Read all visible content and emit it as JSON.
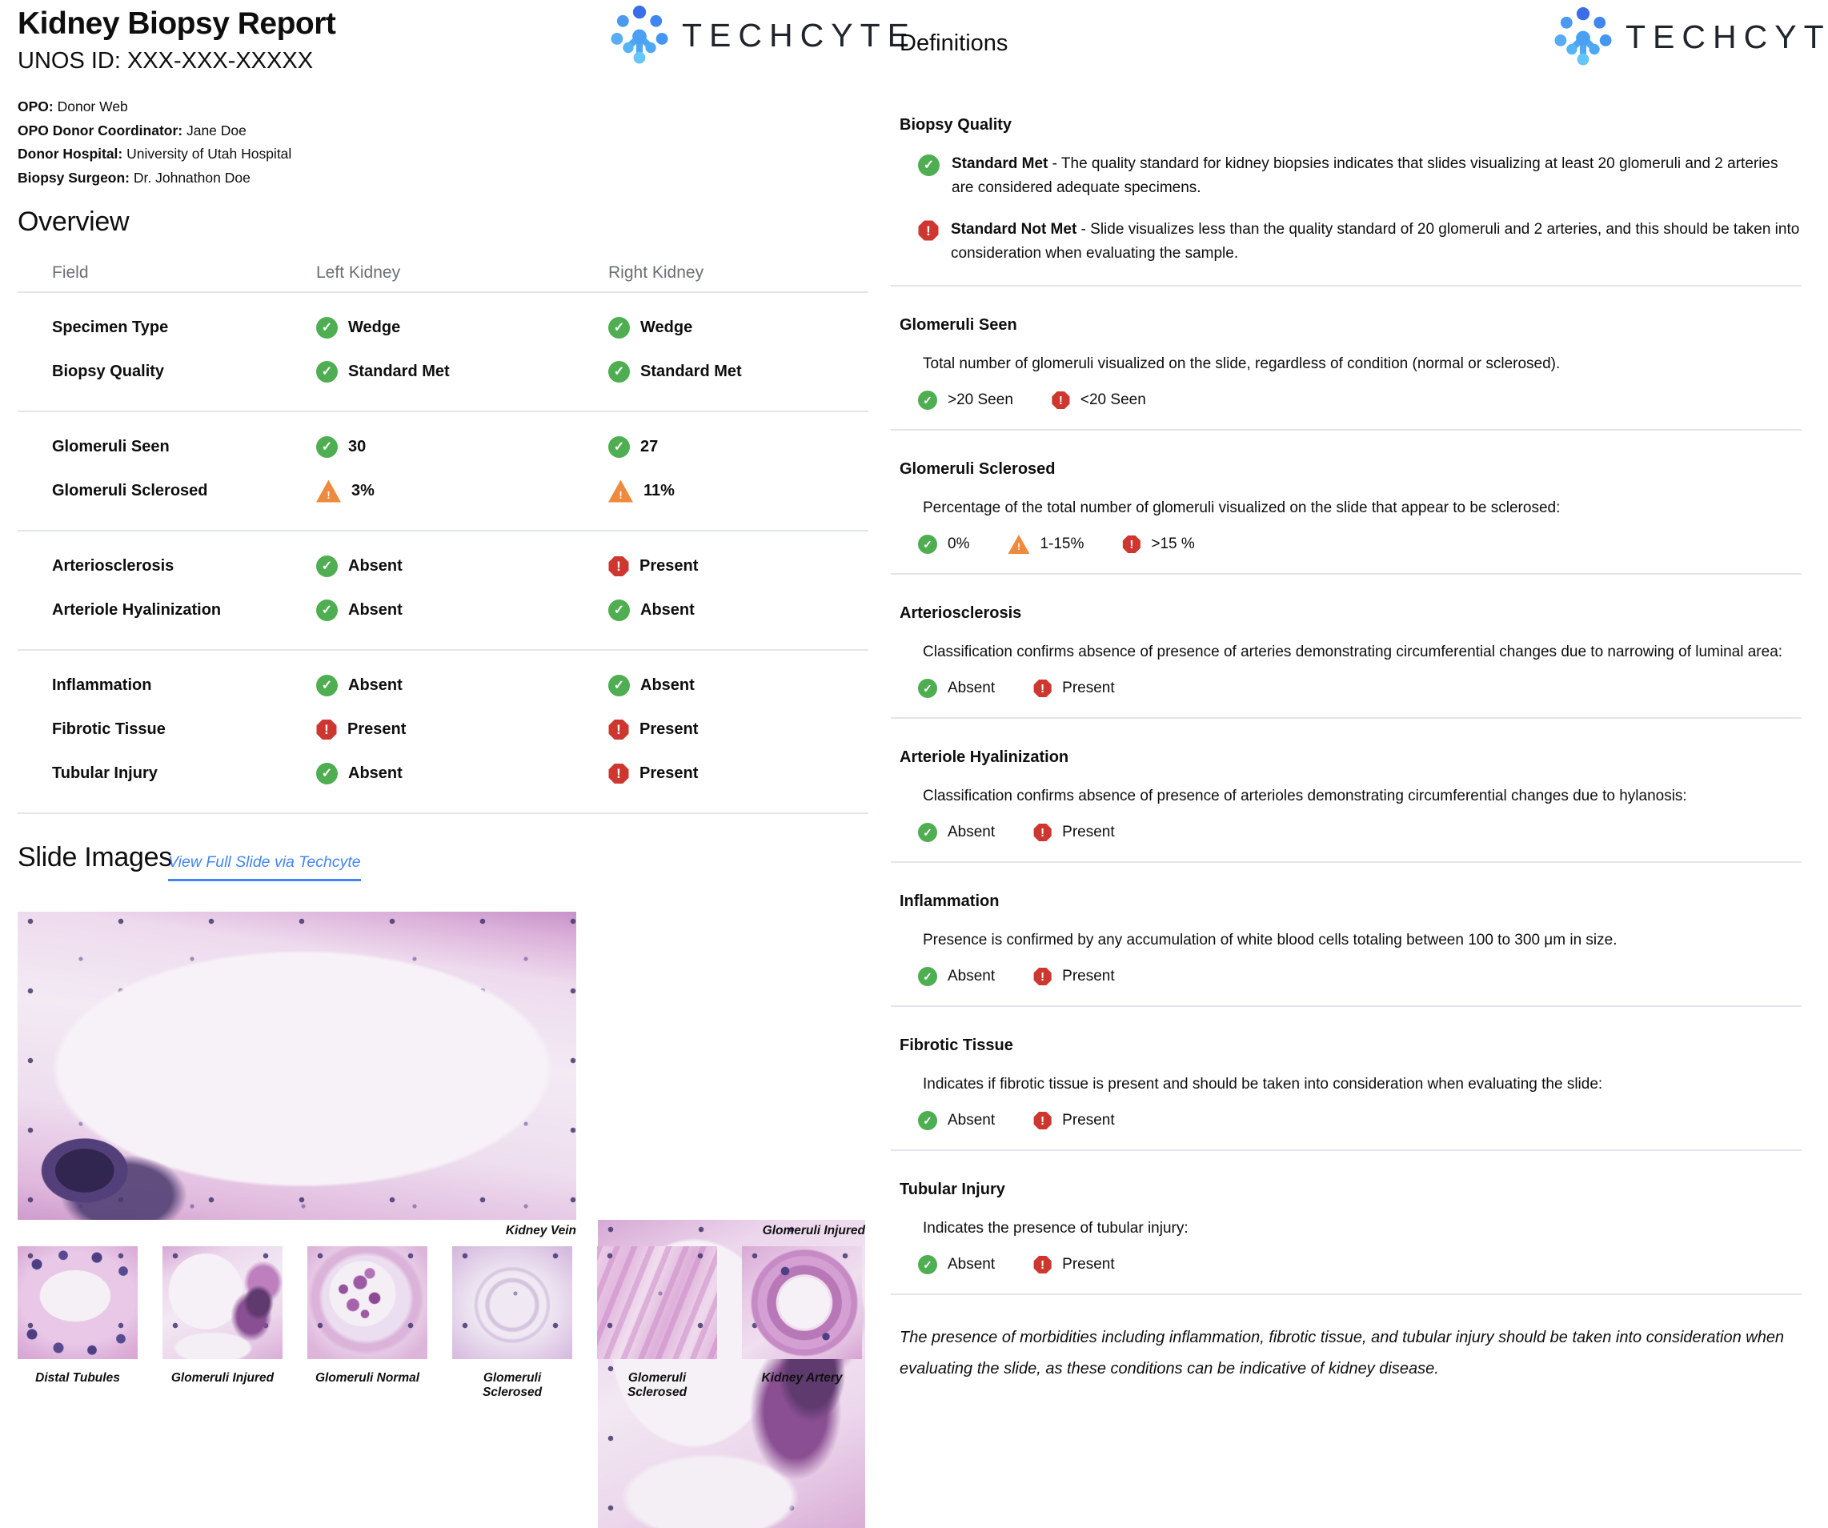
{
  "report": {
    "title": "Kidney Biopsy Report",
    "unos_id": "UNOS ID: XXX-XXX-XXXXX",
    "meta": [
      {
        "label": "OPO:",
        "value": "Donor Web"
      },
      {
        "label": "OPO Donor Coordinator:",
        "value": "Jane Doe"
      },
      {
        "label": "Donor Hospital:",
        "value": "University of Utah Hospital"
      },
      {
        "label": "Biopsy Surgeon:",
        "value": "Dr. Johnathon Doe"
      }
    ]
  },
  "brand": {
    "name": "TECHCYTE"
  },
  "overview": {
    "heading": "Overview",
    "columns": [
      "Field",
      "Left Kidney",
      "Right Kidney"
    ],
    "groups": [
      [
        {
          "field": "Specimen Type",
          "left": {
            "icon": "check",
            "text": "Wedge"
          },
          "right": {
            "icon": "check",
            "text": "Wedge"
          }
        },
        {
          "field": "Biopsy Quality",
          "left": {
            "icon": "check",
            "text": "Standard Met"
          },
          "right": {
            "icon": "check",
            "text": "Standard Met"
          }
        }
      ],
      [
        {
          "field": "Glomeruli Seen",
          "left": {
            "icon": "check",
            "text": "30"
          },
          "right": {
            "icon": "check",
            "text": "27"
          }
        },
        {
          "field": "Glomeruli Sclerosed",
          "left": {
            "icon": "warning",
            "text": "3%"
          },
          "right": {
            "icon": "warning",
            "text": "11%"
          }
        }
      ],
      [
        {
          "field": "Arteriosclerosis",
          "left": {
            "icon": "check",
            "text": "Absent"
          },
          "right": {
            "icon": "alert",
            "text": "Present"
          }
        },
        {
          "field": "Arteriole Hyalinization",
          "left": {
            "icon": "check",
            "text": "Absent"
          },
          "right": {
            "icon": "check",
            "text": "Absent"
          }
        }
      ],
      [
        {
          "field": "Inflammation",
          "left": {
            "icon": "check",
            "text": "Absent"
          },
          "right": {
            "icon": "check",
            "text": "Absent"
          }
        },
        {
          "field": "Fibrotic Tissue",
          "left": {
            "icon": "alert",
            "text": "Present"
          },
          "right": {
            "icon": "alert",
            "text": "Present"
          }
        },
        {
          "field": "Tubular Injury",
          "left": {
            "icon": "check",
            "text": "Absent"
          },
          "right": {
            "icon": "alert",
            "text": "Present"
          }
        }
      ]
    ]
  },
  "slides": {
    "heading": "Slide Images",
    "link_label": "View Full Slide via Techcyte",
    "featured": [
      {
        "caption": "Kidney Vein"
      },
      {
        "caption": "Glomeruli Injured"
      }
    ],
    "thumbnails": [
      {
        "caption": "Distal Tubules"
      },
      {
        "caption": "Glomeruli Injured"
      },
      {
        "caption": "Glomeruli Normal"
      },
      {
        "caption": "Glomeruli Sclerosed"
      },
      {
        "caption": "Glomeruli Sclerosed"
      },
      {
        "caption": "Kidney Artery"
      }
    ]
  },
  "definitions": {
    "heading": "Definitions",
    "sections": [
      {
        "title": "Biopsy Quality",
        "items": [
          {
            "icon": "check",
            "term": "Standard Met",
            "text": "- The quality standard for kidney biopsies indicates that slides visualizing at least 20 glomeruli and 2 arteries are considered adequate specimens."
          },
          {
            "icon": "alert",
            "term": "Standard Not Met",
            "text": "- Slide visualizes less than the quality standard of 20 glomeruli and 2 arteries, and this should be taken into consideration when evaluating the sample."
          }
        ]
      },
      {
        "title": "Glomeruli Seen",
        "description": "Total number of glomeruli visualized on the slide, regardless of condition (normal or sclerosed).",
        "options": [
          {
            "icon": "check",
            "label": ">20 Seen"
          },
          {
            "icon": "alert",
            "label": "<20 Seen"
          }
        ]
      },
      {
        "title": "Glomeruli Sclerosed",
        "description": "Percentage of the total number of glomeruli visualized on the slide that appear to be sclerosed:",
        "options": [
          {
            "icon": "check",
            "label": "0%"
          },
          {
            "icon": "warning",
            "label": "1-15%"
          },
          {
            "icon": "alert",
            "label": ">15 %"
          }
        ]
      },
      {
        "title": "Arteriosclerosis",
        "description": "Classification confirms absence of presence of arteries demonstrating circumferential changes due to narrowing of luminal area:",
        "options": [
          {
            "icon": "check",
            "label": "Absent"
          },
          {
            "icon": "alert",
            "label": "Present"
          }
        ]
      },
      {
        "title": "Arteriole Hyalinization",
        "description": "Classification confirms absence of presence of arterioles demonstrating circumferential changes due to hylanosis:",
        "options": [
          {
            "icon": "check",
            "label": "Absent"
          },
          {
            "icon": "alert",
            "label": "Present"
          }
        ]
      },
      {
        "title": "Inflammation",
        "description": "Presence is confirmed by any accumulation of white blood cells totaling between 100 to 300 μm in size.",
        "options": [
          {
            "icon": "check",
            "label": "Absent"
          },
          {
            "icon": "alert",
            "label": "Present"
          }
        ]
      },
      {
        "title": "Fibrotic Tissue",
        "description": "Indicates if fibrotic tissue is present and should be taken into consideration when evaluating the slide:",
        "options": [
          {
            "icon": "check",
            "label": "Absent"
          },
          {
            "icon": "alert",
            "label": "Present"
          }
        ]
      },
      {
        "title": "Tubular Injury",
        "description": "Indicates the presence of tubular injury:",
        "options": [
          {
            "icon": "check",
            "label": "Absent"
          },
          {
            "icon": "alert",
            "label": "Present"
          }
        ]
      }
    ],
    "footnote": "The presence of morbidities including inflammation, fibrotic tissue, and tubular injury should be taken into consideration when evaluating the slide, as these conditions can be indicative of kidney disease."
  },
  "colors": {
    "check_green": "#4fae51",
    "warning_orange": "#ee8a3d",
    "alert_red": "#ce372f",
    "link_blue": "#4285f4",
    "divider_gray": "#e1e5ee"
  }
}
